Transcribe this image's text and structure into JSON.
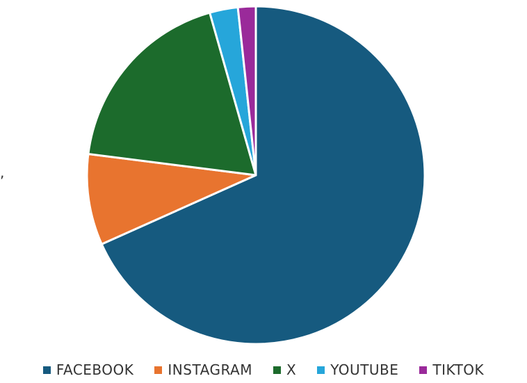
{
  "chart_data": {
    "type": "pie",
    "start_angle_deg": 0,
    "direction": "clockwise",
    "slices": [
      {
        "label": "FACEBOOK",
        "value": 68.3,
        "color": "#165a7f"
      },
      {
        "label": "INSTAGRAM",
        "value": 8.7,
        "color": "#e8742f"
      },
      {
        "label": "X",
        "value": 18.6,
        "color": "#1c6b2c"
      },
      {
        "label": "YOUTUBE",
        "value": 2.7,
        "color": "#26a6da"
      },
      {
        "label": "TIKTOK",
        "value": 1.7,
        "color": "#9a2a9a"
      }
    ],
    "legend_position": "bottom"
  },
  "stray_mark": ","
}
